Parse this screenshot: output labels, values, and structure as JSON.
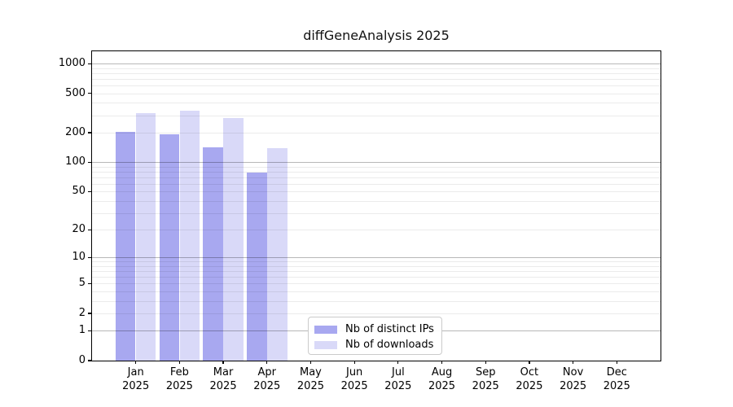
{
  "chart_data": {
    "type": "bar",
    "title": "diffGeneAnalysis 2025",
    "xlabel": "",
    "ylabel": "",
    "categories": [
      "Jan",
      "Feb",
      "Mar",
      "Apr",
      "May",
      "Jun",
      "Jul",
      "Aug",
      "Sep",
      "Oct",
      "Nov",
      "Dec"
    ],
    "category_year": "2025",
    "series": [
      {
        "name": "Nb of distinct IPs",
        "color": "#a8a8f0",
        "values": [
          203,
          192,
          143,
          79,
          0,
          0,
          0,
          0,
          0,
          0,
          0,
          0
        ]
      },
      {
        "name": "Nb of downloads",
        "color": "#d9d9f8",
        "values": [
          318,
          336,
          279,
          140,
          0,
          0,
          0,
          0,
          0,
          0,
          0,
          0
        ]
      }
    ],
    "yscale": "log1p",
    "yticks": [
      0,
      1,
      2,
      5,
      10,
      20,
      50,
      100,
      200,
      500,
      1000
    ],
    "ylim": [
      0,
      1330
    ],
    "grid": "horizontal, major and minor, drawn above bars",
    "legend_position": "lower center",
    "spine_color": "#000000",
    "major_grid_color": "#b4b4b4",
    "minor_grid_color": "#e9e9e9"
  }
}
